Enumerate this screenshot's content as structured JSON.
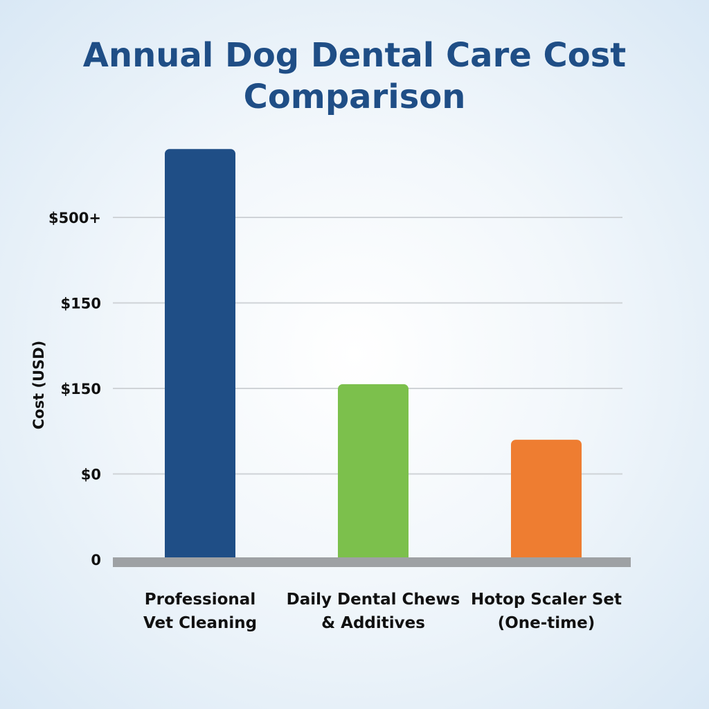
{
  "chart_data": {
    "type": "bar",
    "title_lines": [
      "Annual Dog Dental Care Cost",
      "Comparison"
    ],
    "ylabel": "Cost (USD)",
    "xlabel": "",
    "y_tick_labels": [
      "0",
      "$0",
      "$150",
      "$150",
      "$500+"
    ],
    "categories": [
      [
        "Professional",
        "Vet Cleaning"
      ],
      [
        "Daily Dental Chews",
        "& Additives"
      ],
      [
        "Hotop Scaler Set",
        "(One-time)"
      ]
    ],
    "values_in_axis_steps": [
      4.8,
      2.05,
      1.4
    ],
    "axis_steps": 4,
    "grid": true,
    "legend": "none",
    "colors": [
      "#1f4e86",
      "#7cc04c",
      "#ee7d31"
    ],
    "baseline_color": "#9ea1a4",
    "gridline_color": "#cfd3d7"
  }
}
